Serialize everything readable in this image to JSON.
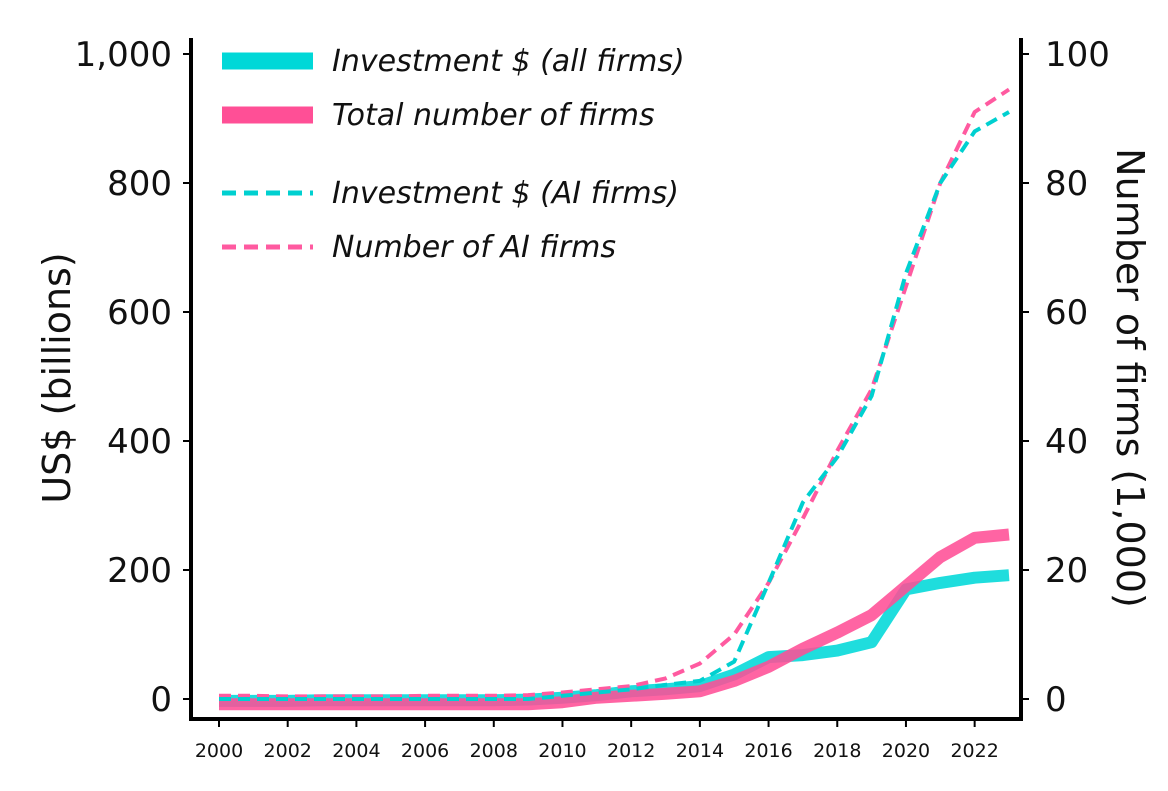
{
  "chart_data": {
    "type": "line",
    "x": [
      2000,
      2001,
      2002,
      2003,
      2004,
      2005,
      2006,
      2007,
      2008,
      2009,
      2010,
      2011,
      2012,
      2013,
      2014,
      2015,
      2016,
      2017,
      2018,
      2019,
      2020,
      2021,
      2022,
      2023
    ],
    "x_ticks": [
      "2000",
      "2002",
      "2004",
      "2006",
      "2008",
      "2010",
      "2012",
      "2014",
      "2016",
      "2018",
      "2020",
      "2022"
    ],
    "xlim": [
      2000,
      2023
    ],
    "y_left": {
      "label": "US$ (billions)",
      "ticks": [
        "0",
        "200",
        "400",
        "600",
        "800",
        "1,000"
      ],
      "lim": [
        0,
        1000
      ]
    },
    "y_right": {
      "label": "Number of firms (1,000)",
      "ticks": [
        "0",
        "20",
        "40",
        "60",
        "80",
        "100"
      ],
      "lim": [
        0,
        100
      ]
    },
    "series": [
      {
        "name": "Investment $ (all firms)",
        "axis": "left",
        "style": "solid",
        "color": "#00d8d8",
        "values": [
          -3,
          -3,
          -3,
          -2,
          -2,
          -2,
          -2,
          -2,
          -2,
          -1,
          2,
          6,
          12,
          15,
          20,
          38,
          65,
          68,
          75,
          88,
          170,
          180,
          188,
          192
        ]
      },
      {
        "name": "Total number of firms",
        "axis": "right",
        "style": "solid",
        "color": "#ff4f96",
        "values": [
          -0.8,
          -0.8,
          -0.8,
          -0.8,
          -0.8,
          -0.8,
          -0.8,
          -0.8,
          -0.8,
          -0.8,
          -0.5,
          0.2,
          0.5,
          0.8,
          1.2,
          2.8,
          5.0,
          7.8,
          10.3,
          13.0,
          17.5,
          22.0,
          25.0,
          25.5
        ]
      },
      {
        "name": "Investment $ (AI firms)",
        "axis": "left",
        "style": "dashed",
        "color": "#00d0d0",
        "values": [
          0,
          0,
          0,
          0,
          0,
          0,
          0,
          0,
          0,
          0,
          5,
          10,
          15,
          22,
          28,
          58,
          180,
          305,
          375,
          470,
          660,
          800,
          880,
          910
        ]
      },
      {
        "name": "Number of AI firms",
        "axis": "right",
        "style": "dashed",
        "color": "#ff5aa0",
        "values": [
          0.5,
          0.5,
          0.4,
          0.4,
          0.4,
          0.4,
          0.5,
          0.5,
          0.5,
          0.6,
          1.0,
          1.5,
          2.0,
          3.2,
          5.5,
          10.0,
          18.0,
          28.0,
          38.5,
          48.0,
          64.0,
          80.0,
          91.0,
          94.5
        ]
      }
    ],
    "legend": {
      "placement": "top-left",
      "entries": [
        "Investment $ (all firms)",
        "Total number of firms",
        "Investment $ (AI firms)",
        "Number of AI firms"
      ]
    },
    "grid": false
  }
}
